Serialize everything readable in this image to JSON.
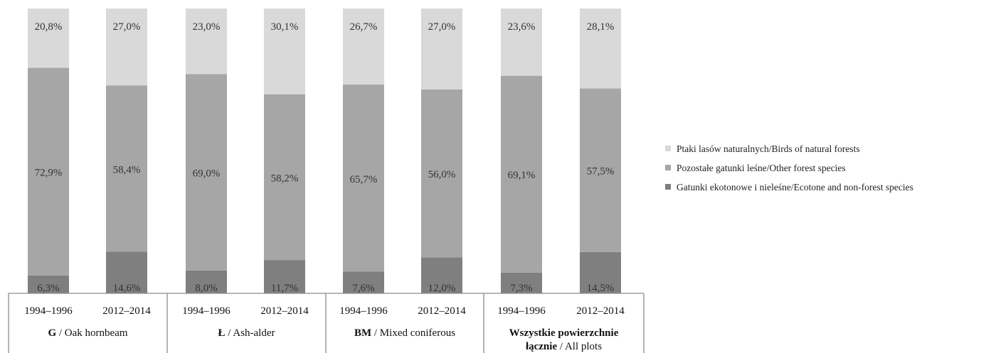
{
  "chart_data": {
    "type": "bar",
    "stacked": "percent",
    "categories": [
      "1994–1996",
      "2012–2014",
      "1994–1996",
      "2012–2014",
      "1994–1996",
      "2012–2014",
      "1994–1996",
      "2012–2014"
    ],
    "groups": [
      {
        "code": "G",
        "rest": " / Oak hornbeam",
        "bars": [
          0,
          1
        ]
      },
      {
        "code": "Ł",
        "rest": " / Ash-alder",
        "bars": [
          2,
          3
        ]
      },
      {
        "code": "BM",
        "rest": " / Mixed coniferous",
        "bars": [
          4,
          5
        ]
      },
      {
        "line1": "Wszystkie powierzchnie",
        "line2_bold": "łącznie",
        "line2_rest": " / All plots",
        "bars": [
          6,
          7
        ]
      }
    ],
    "series": [
      {
        "name": "Gatunki ekotonowe i nieleśne/Ecotone and non-forest species",
        "color": "#7f7f7f",
        "values": [
          6.3,
          14.6,
          8.0,
          11.7,
          7.6,
          12.0,
          7.3,
          14.5
        ],
        "labels": [
          "6,3%",
          "14,6%",
          "8,0%",
          "11,7%",
          "7,6%",
          "12,0%",
          "7,3%",
          "14,5%"
        ]
      },
      {
        "name": "Pozostałe gatunki leśne/Other forest species",
        "color": "#a6a6a6",
        "values": [
          72.9,
          58.4,
          69.0,
          58.2,
          65.7,
          56.0,
          69.1,
          57.5
        ],
        "labels": [
          "72,9%",
          "58,4%",
          "69,0%",
          "58,2%",
          "65,7%",
          "56,0%",
          "69,1%",
          "57,5%"
        ]
      },
      {
        "name": "Ptaki lasów naturalnych/Birds of natural forests",
        "color": "#d9d9d9",
        "values": [
          20.8,
          27.0,
          23.0,
          30.1,
          26.7,
          27.0,
          23.6,
          28.1
        ],
        "labels": [
          "20,8%",
          "27,0%",
          "23,0%",
          "30,1%",
          "26,7%",
          "27,0%",
          "23,6%",
          "28,1%"
        ]
      }
    ],
    "legend_order": [
      2,
      1,
      0
    ],
    "legend_position": "right",
    "ylim": [
      0,
      100
    ],
    "grid": false
  }
}
